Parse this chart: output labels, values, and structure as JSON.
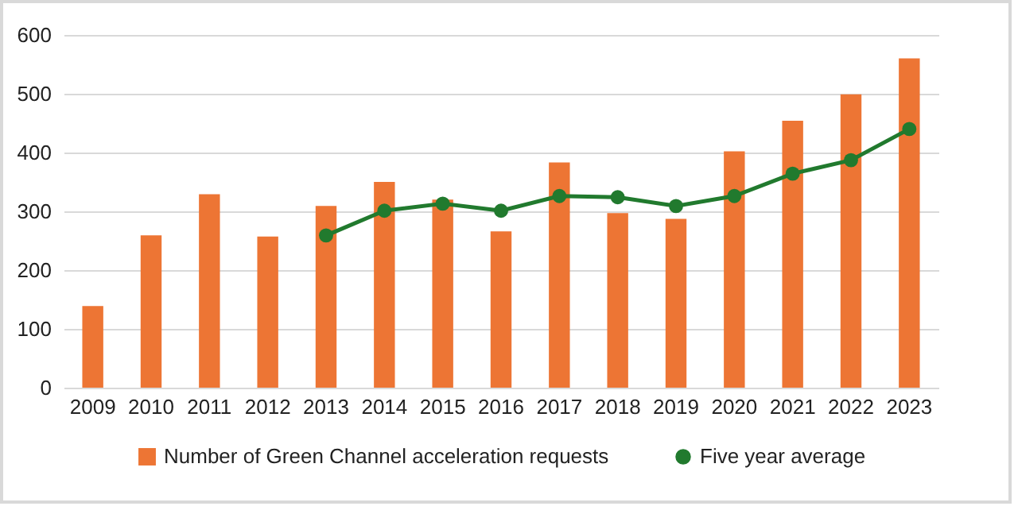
{
  "chart_data": {
    "type": "bar",
    "categories": [
      "2009",
      "2010",
      "2011",
      "2012",
      "2013",
      "2014",
      "2015",
      "2016",
      "2017",
      "2018",
      "2019",
      "2020",
      "2021",
      "2022",
      "2023"
    ],
    "series": [
      {
        "name": "Number of Green Channel acceleration requests",
        "color": "#ed7534",
        "values": [
          139,
          259,
          329,
          257,
          309,
          350,
          320,
          266,
          383,
          297,
          287,
          402,
          454,
          499,
          560
        ]
      },
      {
        "name": "Five year average",
        "type": "line",
        "color": "#217a2e",
        "values": [
          null,
          null,
          null,
          null,
          259,
          301,
          313,
          301,
          326,
          324,
          309,
          326,
          364,
          387,
          440
        ]
      }
    ],
    "ylim": [
      0,
      600
    ],
    "yticks": [
      0,
      100,
      200,
      300,
      400,
      500,
      600
    ],
    "grid": "y",
    "legend": "bottom",
    "marker": "circle"
  }
}
